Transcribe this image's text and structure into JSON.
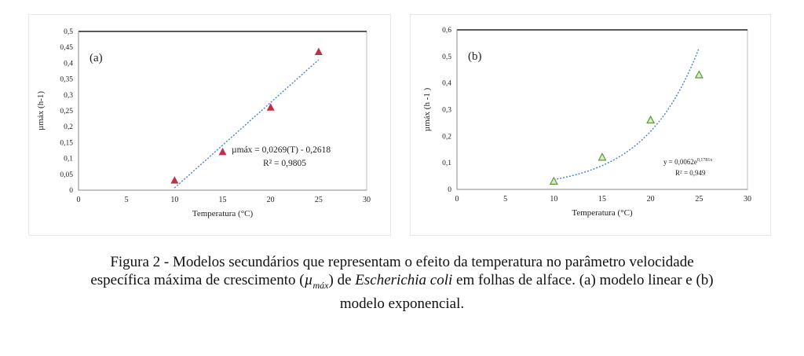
{
  "chart_data": [
    {
      "type": "scatter",
      "panel_label": "(a)",
      "xlabel": "Temperatura (°C)",
      "ylabel": "µmáx (h-1)",
      "xlim": [
        0,
        30
      ],
      "ylim": [
        0,
        0.5
      ],
      "x_ticks": [
        "0",
        "5",
        "10",
        "15",
        "20",
        "25",
        "30"
      ],
      "y_ticks": [
        "0",
        "0,05",
        "0,1",
        "0,15",
        "0,2",
        "0,25",
        "0,3",
        "0,35",
        "0,4",
        "0,45",
        "0,5"
      ],
      "series": [
        {
          "x": [
            10,
            15,
            20,
            25
          ],
          "y": [
            0.03,
            0.12,
            0.26,
            0.435
          ],
          "marker": "triangle",
          "color": "#c0304a"
        }
      ],
      "trendline": {
        "kind": "linear",
        "slope": 0.0269,
        "intercept": -0.2618,
        "x_range": [
          10,
          25
        ],
        "color": "#4a7fd0"
      },
      "annotation": {
        "equation": "µmáx = 0,0269(T) - 0,2618",
        "r2": "R² = 0,9805"
      }
    },
    {
      "type": "scatter",
      "panel_label": "(b)",
      "xlabel": "Temperatura (°C)",
      "ylabel": "µmáx (h -1 )",
      "xlim": [
        0,
        30
      ],
      "ylim": [
        0,
        0.6
      ],
      "x_ticks": [
        "0",
        "5",
        "10",
        "15",
        "20",
        "25",
        "30"
      ],
      "y_ticks": [
        "0",
        "0,1",
        "0,2",
        "0,3",
        "0,4",
        "0,5",
        "0,6"
      ],
      "series": [
        {
          "x": [
            10,
            15,
            20,
            25
          ],
          "y": [
            0.03,
            0.12,
            0.26,
            0.43
          ],
          "marker": "triangle",
          "color": "#5a9a3a",
          "fill": "#d8ecc4"
        }
      ],
      "trendline": {
        "kind": "exponential",
        "a": 0.0062,
        "b": 0.1781,
        "x_range": [
          10,
          25
        ],
        "color": "#4a7fd0"
      },
      "annotation": {
        "equation": "y = 0,0062e",
        "exponent": "0,1781x",
        "r2": "R² = 0,949"
      }
    }
  ],
  "caption": {
    "line1_a": "Figura 2 - Modelos secundários que representam o efeito da temperatura no parâmetro velocidade",
    "line2_a": "específica máxima de crescimento (",
    "mu": "µ",
    "mu_sub": "máx",
    "line2_b": ") de ",
    "species": "Escherichia coli",
    "line2_c": " em folhas de alface. (a) modelo linear e (b)",
    "line3": "modelo exponencial."
  }
}
